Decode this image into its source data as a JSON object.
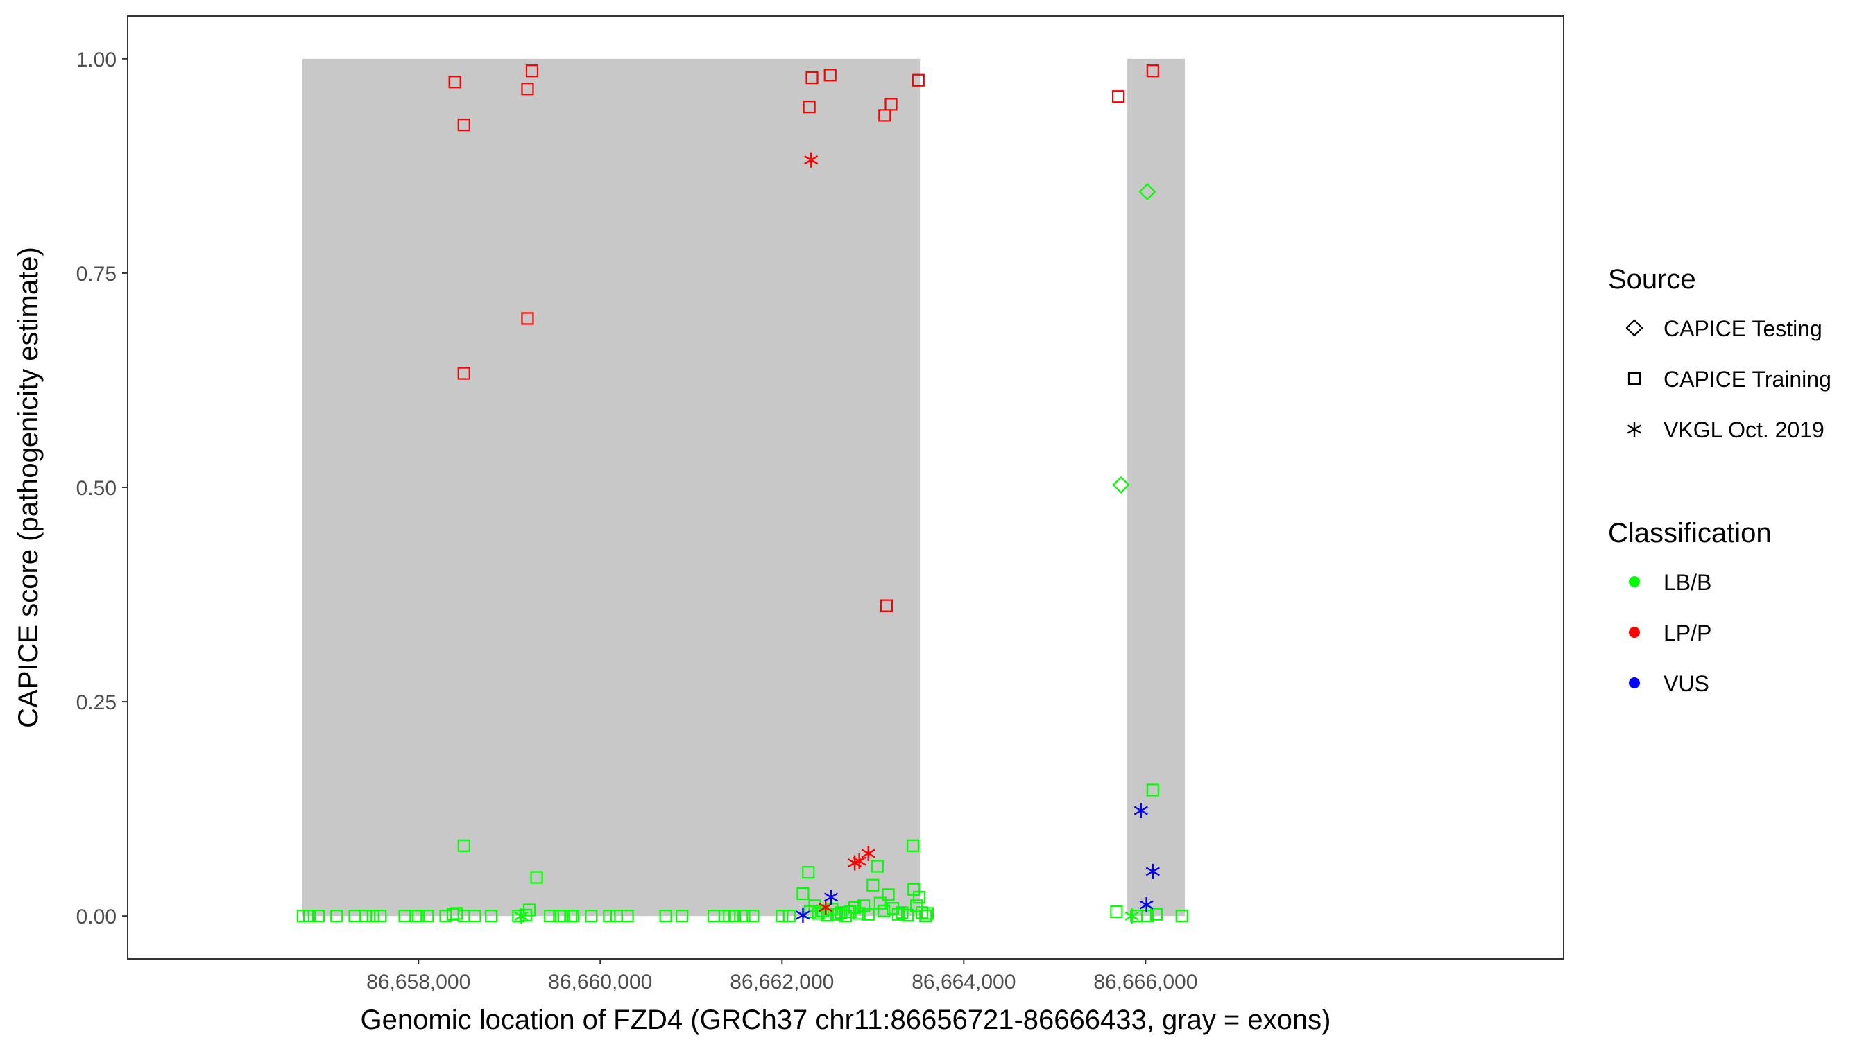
{
  "chart_data": {
    "type": "scatter",
    "title": "",
    "xlabel": "Genomic location of FZD4 (GRCh37 chr11:86656721-86666433, gray = exons)",
    "ylabel": "CAPICE score (pathogenicity estimate)",
    "xlim": [
      86654800,
      86670600
    ],
    "ylim": [
      -0.05,
      1.05
    ],
    "x_ticks": [
      86658000,
      86660000,
      86662000,
      86664000,
      86666000
    ],
    "x_tick_labels": [
      "86,658,000",
      "86,660,000",
      "86,662,000",
      "86,664,000",
      "86,666,000"
    ],
    "y_ticks": [
      0,
      0.25,
      0.5,
      0.75,
      1
    ],
    "y_tick_labels": [
      "0.00",
      "0.25",
      "0.50",
      "0.75",
      "1.00"
    ],
    "grid": false,
    "exons": [
      [
        86656721,
        86663518
      ],
      [
        86665800,
        86666433
      ]
    ],
    "colors": {
      "LB/B": "#00ff00",
      "LP/P": "#ff0000",
      "VUS": "#0000ff",
      "exon": "#c8c8c8"
    },
    "legend_position": "right",
    "legend": {
      "source_title": "Source",
      "source": [
        {
          "label": "CAPICE Testing",
          "shape": "diamond"
        },
        {
          "label": "CAPICE Training",
          "shape": "square"
        },
        {
          "label": "VKGL Oct. 2019",
          "shape": "asterisk"
        }
      ],
      "classification_title": "Classification",
      "classification": [
        {
          "label": "LB/B",
          "color": "#00ff00"
        },
        {
          "label": "LP/P",
          "color": "#ff0000"
        },
        {
          "label": "VUS",
          "color": "#0000ff"
        }
      ]
    },
    "series": [
      {
        "source": "CAPICE Training",
        "classification": "LP/P",
        "points": [
          [
            86658400,
            0.973
          ],
          [
            86658500,
            0.923
          ],
          [
            86658500,
            0.633
          ],
          [
            86659200,
            0.965
          ],
          [
            86659250,
            0.986
          ],
          [
            86659200,
            0.697
          ],
          [
            86662300,
            0.944
          ],
          [
            86662330,
            0.978
          ],
          [
            86662530,
            0.981
          ],
          [
            86663130,
            0.934
          ],
          [
            86663200,
            0.947
          ],
          [
            86663500,
            0.975
          ],
          [
            86663150,
            0.362
          ],
          [
            86665700,
            0.956
          ],
          [
            86666080,
            0.986
          ]
        ]
      },
      {
        "source": "CAPICE Training",
        "classification": "LB/B",
        "points": [
          [
            86656730,
            0
          ],
          [
            86656800,
            0
          ],
          [
            86656900,
            0
          ],
          [
            86657100,
            0
          ],
          [
            86657300,
            0
          ],
          [
            86657420,
            0
          ],
          [
            86657500,
            0
          ],
          [
            86657580,
            0
          ],
          [
            86657850,
            0
          ],
          [
            86657970,
            0
          ],
          [
            86658000,
            0
          ],
          [
            86658100,
            0
          ],
          [
            86658300,
            0
          ],
          [
            86658380,
            0.002
          ],
          [
            86658420,
            0.003
          ],
          [
            86658500,
            0
          ],
          [
            86658620,
            0
          ],
          [
            86658800,
            0
          ],
          [
            86659100,
            0
          ],
          [
            86659180,
            0.001
          ],
          [
            86659220,
            0.007
          ],
          [
            86659450,
            0
          ],
          [
            86659550,
            0
          ],
          [
            86659600,
            0
          ],
          [
            86659680,
            0
          ],
          [
            86659700,
            0
          ],
          [
            86659900,
            0
          ],
          [
            86660100,
            0
          ],
          [
            86660180,
            0
          ],
          [
            86660300,
            0
          ],
          [
            86660720,
            0
          ],
          [
            86660900,
            0
          ],
          [
            86661250,
            0
          ],
          [
            86661370,
            0
          ],
          [
            86661420,
            0
          ],
          [
            86661480,
            0
          ],
          [
            86661580,
            0
          ],
          [
            86661680,
            0
          ],
          [
            86662000,
            0
          ],
          [
            86662080,
            0
          ],
          [
            86658500,
            0.082
          ],
          [
            86659300,
            0.045
          ],
          [
            86662230,
            0.026
          ],
          [
            86662290,
            0.051
          ],
          [
            86662310,
            0.005
          ],
          [
            86662360,
            0.012
          ],
          [
            86662400,
            0.003
          ],
          [
            86662450,
            0.006
          ],
          [
            86662500,
            0.001
          ],
          [
            86662550,
            0.008
          ],
          [
            86662600,
            0.002
          ],
          [
            86662650,
            0.004
          ],
          [
            86662700,
            0
          ],
          [
            86662750,
            0.005
          ],
          [
            86662800,
            0.01
          ],
          [
            86662850,
            0.003
          ],
          [
            86662900,
            0.012
          ],
          [
            86662950,
            0.002
          ],
          [
            86663000,
            0.036
          ],
          [
            86663050,
            0.058
          ],
          [
            86663080,
            0.015
          ],
          [
            86663120,
            0.006
          ],
          [
            86663170,
            0.025
          ],
          [
            86663220,
            0.009
          ],
          [
            86663280,
            0.002
          ],
          [
            86663320,
            0.004
          ],
          [
            86663380,
            0.001
          ],
          [
            86663440,
            0.082
          ],
          [
            86663450,
            0.031
          ],
          [
            86663480,
            0.012
          ],
          [
            86663510,
            0.022
          ],
          [
            86663540,
            0.004
          ],
          [
            86663580,
            0
          ],
          [
            86663600,
            0.003
          ],
          [
            86665680,
            0.005
          ],
          [
            86665900,
            0
          ],
          [
            86666020,
            0
          ],
          [
            86666080,
            0.147
          ],
          [
            86666120,
            0.002
          ],
          [
            86666400,
            0
          ]
        ]
      },
      {
        "source": "CAPICE Testing",
        "classification": "LB/B",
        "points": [
          [
            86665730,
            0.503
          ],
          [
            86666020,
            0.845
          ]
        ]
      },
      {
        "source": "VKGL Oct. 2019",
        "classification": "LP/P",
        "points": [
          [
            86662320,
            0.882
          ],
          [
            86662480,
            0.01
          ],
          [
            86662800,
            0.062
          ],
          [
            86662850,
            0.064
          ],
          [
            86662950,
            0.073
          ]
        ]
      },
      {
        "source": "VKGL Oct. 2019",
        "classification": "VUS",
        "points": [
          [
            86662230,
            0.001
          ],
          [
            86662540,
            0.022
          ],
          [
            86665950,
            0.123
          ],
          [
            86666010,
            0.013
          ],
          [
            86666080,
            0.052
          ]
        ]
      },
      {
        "source": "VKGL Oct. 2019",
        "classification": "LB/B",
        "points": [
          [
            86659130,
            0
          ],
          [
            86665850,
            0
          ]
        ]
      }
    ]
  }
}
